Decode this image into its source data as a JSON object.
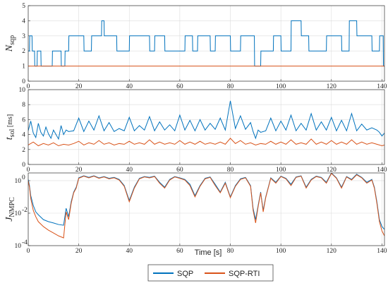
{
  "chart_data": [
    {
      "type": "line",
      "ylabel": "N",
      "ylabel_sub": "sqp",
      "ylim": [
        0,
        5
      ],
      "xlim": [
        0,
        141
      ],
      "yticks": [
        "0",
        "1",
        "2",
        "3",
        "4",
        "5"
      ],
      "xticks": [
        "0",
        "20",
        "40",
        "60",
        "80",
        "100",
        "120",
        "140"
      ],
      "grid": true,
      "series": [
        {
          "name": "SQP",
          "color": "#0072BD",
          "x": [
            0,
            0.5,
            0.6,
            1.5,
            1.6,
            2.5,
            2.6,
            3.5,
            3.6,
            5,
            5.1,
            9.5,
            9.6,
            13,
            13.1,
            14.5,
            14.6,
            16,
            16.1,
            22,
            22.1,
            25,
            25.1,
            29,
            29.1,
            30,
            30.1,
            35,
            35.1,
            40,
            40.1,
            48,
            48.1,
            50,
            50.1,
            54,
            54.1,
            62,
            62.1,
            65,
            65.1,
            67,
            67.1,
            72,
            72.1,
            74,
            74.1,
            80,
            80.1,
            84,
            84.1,
            89.5,
            89.6,
            92,
            92.1,
            97,
            97.1,
            100,
            100.1,
            104,
            104.1,
            108,
            108.1,
            111,
            111.1,
            118,
            118.1,
            124,
            124.1,
            127,
            127.1,
            130,
            130.1,
            136,
            136.1,
            139,
            139.1,
            140.5,
            140.6,
            141
          ],
          "y": [
            2,
            2,
            3,
            3,
            2,
            2,
            1,
            1,
            2,
            2,
            1,
            1,
            2,
            2,
            1,
            1,
            2,
            2,
            3,
            3,
            2,
            2,
            3,
            3,
            4,
            4,
            3,
            3,
            2,
            2,
            3,
            3,
            2,
            2,
            3,
            3,
            2,
            2,
            3,
            3,
            2,
            2,
            3,
            3,
            2,
            2,
            3,
            3,
            2,
            2,
            3,
            3,
            1,
            1,
            2,
            2,
            3,
            3,
            2,
            2,
            4,
            4,
            3,
            3,
            2,
            2,
            3,
            3,
            2,
            2,
            4,
            4,
            3,
            3,
            2,
            2,
            3,
            3,
            1,
            1
          ]
        },
        {
          "name": "SQP-RTI",
          "color": "#D95319",
          "x": [
            0,
            141
          ],
          "y": [
            1,
            1
          ]
        }
      ]
    },
    {
      "type": "line",
      "ylabel": "t",
      "ylabel_sub": "sol",
      "ylabel_unit": "[ms]",
      "ylim": [
        0,
        10
      ],
      "xlim": [
        0,
        141
      ],
      "yticks": [
        "0",
        "2",
        "4",
        "6",
        "8",
        "10"
      ],
      "xticks": [
        "0",
        "20",
        "40",
        "60",
        "80",
        "100",
        "120",
        "140"
      ],
      "grid": true,
      "series": [
        {
          "name": "SQP",
          "color": "#0072BD",
          "x": [
            0,
            1,
            2,
            3,
            4,
            5,
            6,
            7,
            8,
            9,
            10,
            11,
            12,
            13,
            14,
            15,
            16,
            18,
            20,
            22,
            24,
            26,
            28,
            30,
            32,
            34,
            36,
            38,
            40,
            42,
            44,
            46,
            48,
            50,
            52,
            54,
            56,
            58,
            60,
            62,
            64,
            66,
            68,
            70,
            72,
            74,
            76,
            78,
            80,
            82,
            84,
            86,
            88,
            89,
            90,
            91,
            92,
            94,
            96,
            98,
            100,
            102,
            104,
            106,
            108,
            110,
            112,
            114,
            116,
            118,
            120,
            122,
            124,
            126,
            128,
            130,
            132,
            134,
            136,
            138,
            139,
            140,
            141
          ],
          "y": [
            4.5,
            5.8,
            4.2,
            3.6,
            5.5,
            4.3,
            3.8,
            5.0,
            4.1,
            3.5,
            4.6,
            4.0,
            3.4,
            5.2,
            4.0,
            4.6,
            4.4,
            4.5,
            6.2,
            4.4,
            5.8,
            4.6,
            6.5,
            4.5,
            5.6,
            4.4,
            4.8,
            4.5,
            6.3,
            4.5,
            5.2,
            4.6,
            6.4,
            4.5,
            5.7,
            4.6,
            5.3,
            4.5,
            6.6,
            4.6,
            5.9,
            4.5,
            6.0,
            4.6,
            5.5,
            4.7,
            6.2,
            4.6,
            8.5,
            4.8,
            6.5,
            4.7,
            5.6,
            4.4,
            3.5,
            4.6,
            4.3,
            4.5,
            6.2,
            4.5,
            5.8,
            4.6,
            6.6,
            4.5,
            5.5,
            4.6,
            6.8,
            4.6,
            5.7,
            4.6,
            6.3,
            4.5,
            5.9,
            4.5,
            6.8,
            4.5,
            5.4,
            4.6,
            4.9,
            4.6,
            4.3,
            3.8,
            4.2
          ]
        },
        {
          "name": "SQP-RTI",
          "color": "#D95319",
          "x": [
            0,
            2,
            4,
            6,
            8,
            10,
            12,
            14,
            16,
            18,
            20,
            22,
            24,
            26,
            28,
            30,
            32,
            34,
            36,
            38,
            40,
            42,
            44,
            46,
            48,
            50,
            52,
            54,
            56,
            58,
            60,
            62,
            64,
            66,
            68,
            70,
            72,
            74,
            76,
            78,
            80,
            82,
            84,
            86,
            88,
            90,
            92,
            94,
            96,
            98,
            100,
            102,
            104,
            106,
            108,
            110,
            112,
            114,
            116,
            118,
            120,
            122,
            124,
            126,
            128,
            130,
            132,
            134,
            136,
            138,
            140,
            141
          ],
          "y": [
            2.6,
            3.0,
            2.5,
            2.8,
            2.6,
            2.9,
            2.5,
            2.7,
            2.6,
            2.8,
            3.1,
            2.6,
            2.9,
            2.7,
            3.2,
            2.7,
            2.9,
            2.6,
            2.8,
            2.7,
            3.1,
            2.7,
            2.9,
            2.7,
            3.3,
            2.7,
            3.0,
            2.7,
            2.9,
            2.7,
            3.2,
            2.7,
            3.0,
            2.7,
            3.1,
            2.7,
            2.9,
            2.7,
            3.0,
            2.7,
            3.5,
            2.8,
            3.2,
            2.7,
            2.9,
            2.6,
            2.8,
            2.7,
            3.1,
            2.7,
            3.0,
            2.7,
            3.3,
            2.7,
            2.9,
            2.7,
            3.4,
            2.7,
            3.0,
            2.7,
            3.2,
            2.7,
            3.0,
            2.7,
            3.3,
            2.7,
            3.0,
            2.7,
            2.9,
            2.7,
            2.5,
            2.6
          ]
        }
      ]
    },
    {
      "type": "line",
      "yscale": "log",
      "ylabel": "J",
      "ylabel_sub": "NMPC",
      "ylim": [
        0.0001,
        3
      ],
      "xlim": [
        0,
        141
      ],
      "ytick_values": [
        0.0001,
        0.01,
        1
      ],
      "yticks": [
        "10",
        "10",
        "10"
      ],
      "ytick_exponents": [
        "-4",
        "-2",
        "0"
      ],
      "xticks": [
        "0",
        "20",
        "40",
        "60",
        "80",
        "100",
        "120",
        "140"
      ],
      "xlabel": "Time [s]",
      "grid": true,
      "series": [
        {
          "name": "SQP",
          "color": "#0072BD",
          "x": [
            0,
            0.5,
            1,
            2,
            3,
            4,
            6,
            8,
            10,
            12,
            14,
            15,
            16,
            17,
            18,
            19,
            20,
            22,
            24,
            26,
            28,
            30,
            32,
            34,
            36,
            38,
            40,
            42,
            44,
            46,
            48,
            50,
            52,
            54,
            56,
            58,
            60,
            62,
            64,
            66,
            68,
            70,
            72,
            74,
            76,
            78,
            80,
            82,
            84,
            86,
            88,
            89,
            90,
            91,
            92,
            93,
            94,
            96,
            98,
            100,
            102,
            104,
            106,
            108,
            110,
            112,
            114,
            116,
            118,
            120,
            122,
            124,
            126,
            128,
            130,
            132,
            134,
            136,
            137,
            138,
            139,
            140,
            141
          ],
          "y": [
            1.2,
            0.5,
            0.12,
            0.03,
            0.012,
            0.008,
            0.004,
            0.003,
            0.0025,
            0.002,
            0.0018,
            0.02,
            0.006,
            0.05,
            0.2,
            0.4,
            1.5,
            2.0,
            1.6,
            2.0,
            1.5,
            1.8,
            1.4,
            1.6,
            1.2,
            0.5,
            0.06,
            0.4,
            1.4,
            1.8,
            1.6,
            1.9,
            0.8,
            0.4,
            1.2,
            1.8,
            1.5,
            1.2,
            0.6,
            0.12,
            0.5,
            1.4,
            1.7,
            0.6,
            0.2,
            0.8,
            0.1,
            0.5,
            1.3,
            1.6,
            0.5,
            0.02,
            0.004,
            0.03,
            0.2,
            0.015,
            0.1,
            1.5,
            0.8,
            1.9,
            1.4,
            0.6,
            1.7,
            2.0,
            0.4,
            1.2,
            1.9,
            1.6,
            0.8,
            3.0,
            1.5,
            0.4,
            1.8,
            1.2,
            2.5,
            1.6,
            0.8,
            1.2,
            0.4,
            0.05,
            0.004,
            0.0015,
            0.001
          ]
        },
        {
          "name": "SQP-RTI",
          "color": "#D95319",
          "x": [
            0,
            0.5,
            1,
            2,
            3,
            4,
            6,
            8,
            10,
            12,
            14,
            15,
            16,
            17,
            18,
            19,
            20,
            22,
            24,
            26,
            28,
            30,
            32,
            34,
            36,
            38,
            40,
            42,
            44,
            46,
            48,
            50,
            52,
            54,
            56,
            58,
            60,
            62,
            64,
            66,
            68,
            70,
            72,
            74,
            76,
            78,
            80,
            82,
            84,
            86,
            88,
            89,
            90,
            91,
            92,
            93,
            94,
            96,
            98,
            100,
            102,
            104,
            106,
            108,
            110,
            112,
            114,
            116,
            118,
            120,
            122,
            124,
            126,
            128,
            130,
            132,
            134,
            136,
            137,
            138,
            139,
            140,
            141
          ],
          "y": [
            1.0,
            0.4,
            0.08,
            0.015,
            0.006,
            0.003,
            0.0015,
            0.0009,
            0.0006,
            0.0004,
            0.0003,
            0.012,
            0.004,
            0.04,
            0.18,
            0.35,
            1.4,
            1.9,
            1.5,
            1.9,
            1.4,
            1.7,
            1.3,
            1.5,
            1.1,
            0.45,
            0.05,
            0.35,
            1.3,
            1.7,
            1.5,
            1.8,
            0.7,
            0.35,
            1.1,
            1.7,
            1.4,
            1.1,
            0.5,
            0.1,
            0.45,
            1.3,
            1.6,
            0.5,
            0.18,
            0.7,
            0.09,
            0.45,
            1.2,
            1.5,
            0.45,
            0.015,
            0.0025,
            0.025,
            0.18,
            0.012,
            0.09,
            1.4,
            0.7,
            1.8,
            1.3,
            0.5,
            1.6,
            1.9,
            0.35,
            1.1,
            1.8,
            1.5,
            0.7,
            2.8,
            1.4,
            0.35,
            1.7,
            1.1,
            2.3,
            1.5,
            0.7,
            1.1,
            0.35,
            0.04,
            0.003,
            0.0008,
            0.0004
          ]
        }
      ]
    }
  ],
  "legend": {
    "items": [
      {
        "label": "SQP",
        "color": "#0072BD"
      },
      {
        "label": "SQP-RTI",
        "color": "#D95319"
      }
    ]
  }
}
